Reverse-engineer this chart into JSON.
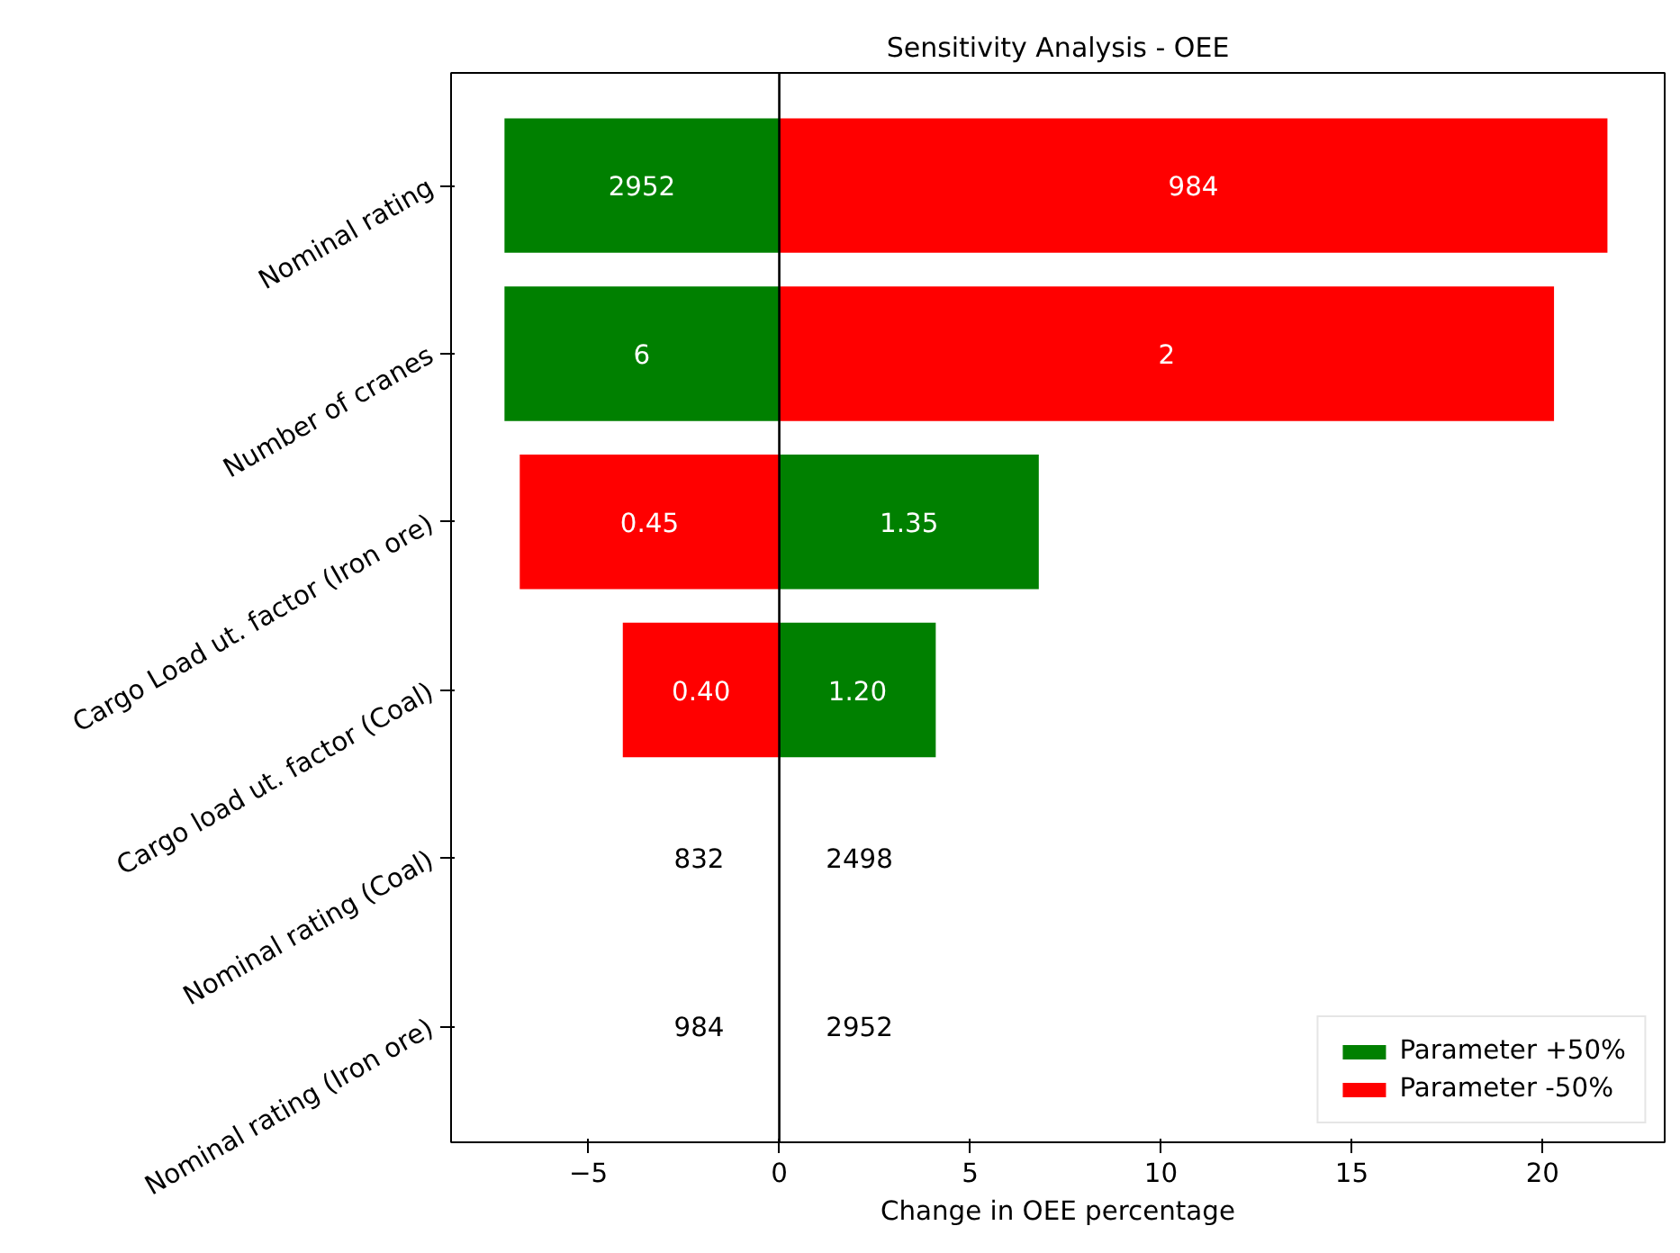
{
  "chart_data": {
    "type": "bar",
    "orientation": "horizontal",
    "stacked": true,
    "title": "Sensitivity Analysis - OEE",
    "xlabel": "Change in OEE percentage",
    "categories": [
      "Nominal rating",
      "Number of cranes",
      "Cargo Load ut. factor (Iron ore)",
      "Cargo load ut. factor (Coal)",
      "Nominal rating (Coal)",
      "Nominal rating (Iron ore)"
    ],
    "series": [
      {
        "name": "Parameter +50%",
        "color": "#008000",
        "values": [
          -7.2,
          -7.2,
          6.8,
          4.1,
          0,
          0
        ]
      },
      {
        "name": "Parameter -50%",
        "color": "#ff0000",
        "values": [
          21.7,
          20.3,
          -6.8,
          -4.1,
          0,
          0
        ]
      }
    ],
    "annotations": [
      {
        "text": "2952",
        "x": -3.6,
        "y": "Nominal rating"
      },
      {
        "text": "984",
        "x": 10.85,
        "y": "Nominal rating"
      },
      {
        "text": "6",
        "x": -3.6,
        "y": "Number of cranes"
      },
      {
        "text": "2",
        "x": 10.15,
        "y": "Number of cranes"
      },
      {
        "text": "0.45",
        "x": -3.4,
        "y": "Cargo Load ut. factor (Iron ore)"
      },
      {
        "text": "1.35",
        "x": 3.4,
        "y": "Cargo Load ut. factor (Iron ore)"
      },
      "0.40",
      "1.20",
      "832",
      "2498",
      "984",
      "2952"
    ],
    "xlim": [
      -8.6,
      23.2
    ],
    "xticks": [
      -5,
      0,
      5,
      10,
      15,
      20
    ],
    "ref_lines": [
      {
        "axis": "x",
        "value": 0,
        "color": "#000000"
      }
    ],
    "grid": false,
    "legend": "bottom right"
  }
}
